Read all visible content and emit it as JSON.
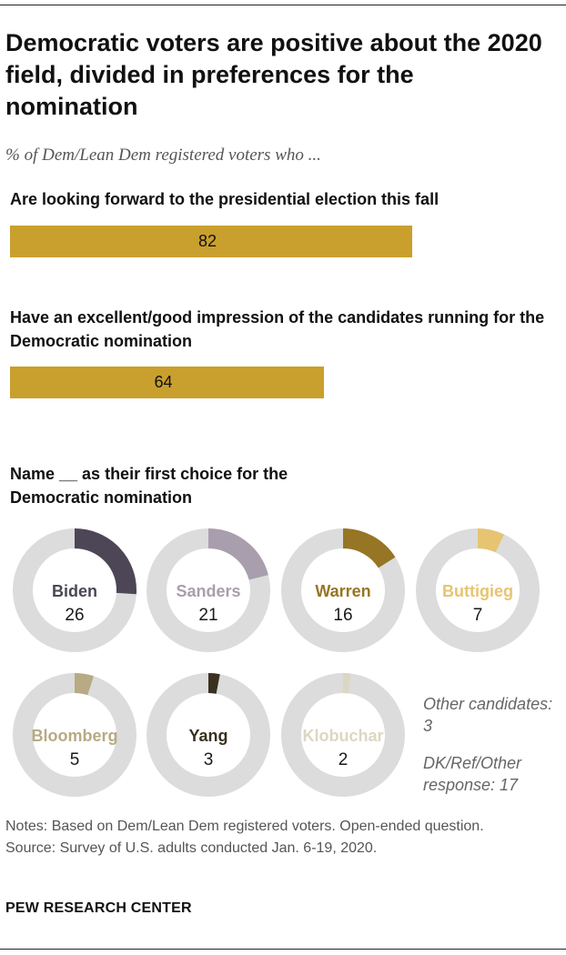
{
  "title": "Democratic voters are positive about the 2020 field, divided in preferences for the nomination",
  "subtitle": "% of Dem/Lean Dem registered voters who ...",
  "colors": {
    "bar": "#c9a02d",
    "ring": "#dcdcdc"
  },
  "chart_data": [
    {
      "type": "bar",
      "title": "Are looking forward to the presidential election this fall",
      "values": [
        82
      ],
      "value_labels": [
        "82"
      ],
      "xlim": [
        0,
        100
      ]
    },
    {
      "type": "bar",
      "title": "Have an excellent/good impression of the candidates running for the Democratic nomination",
      "values": [
        64
      ],
      "value_labels": [
        "64"
      ],
      "xlim": [
        0,
        100
      ]
    },
    {
      "type": "pie",
      "title": "Name __ as their first choice for the Democratic nomination",
      "categories": [
        "Biden",
        "Sanders",
        "Warren",
        "Buttigieg",
        "Bloomberg",
        "Yang",
        "Klobuchar"
      ],
      "values": [
        26,
        21,
        16,
        7,
        5,
        3,
        2
      ],
      "value_labels": [
        "26",
        "21",
        "16",
        "7",
        "5",
        "3",
        "2"
      ],
      "colors": [
        "#4d4656",
        "#a89ead",
        "#967524",
        "#e6c472",
        "#b7aa84",
        "#3a3120",
        "#ddd6c2"
      ],
      "other": [
        "Other candidates: 3",
        "DK/Ref/Other response: 17"
      ]
    }
  ],
  "notes": "Notes: Based on Dem/Lean Dem registered voters. Open-ended question.",
  "source": "Source: Survey of U.S. adults conducted Jan. 6-19, 2020.",
  "brand": "PEW RESEARCH CENTER"
}
